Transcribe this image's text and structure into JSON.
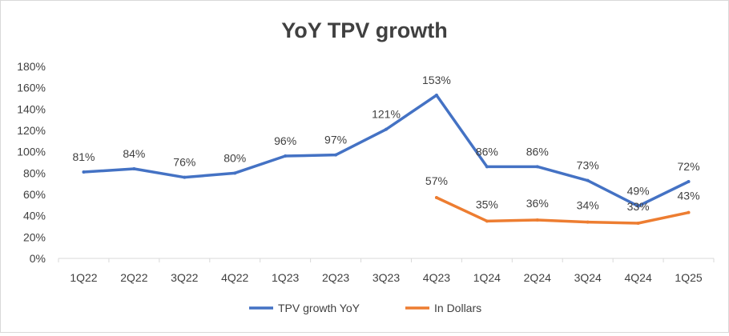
{
  "chart_data": {
    "type": "line",
    "title": "YoY TPV growth",
    "xlabel": "",
    "ylabel": "",
    "ylim": [
      0,
      180
    ],
    "yticks": [
      "0%",
      "20%",
      "40%",
      "60%",
      "80%",
      "100%",
      "120%",
      "140%",
      "160%",
      "180%"
    ],
    "grid": false,
    "legend": "bottom",
    "categories": [
      "1Q22",
      "2Q22",
      "3Q22",
      "4Q22",
      "1Q23",
      "2Q23",
      "3Q23",
      "4Q23",
      "1Q24",
      "2Q24",
      "3Q24",
      "4Q24",
      "1Q25"
    ],
    "series": [
      {
        "name": "TPV growth YoY",
        "color": "#4472C4",
        "values": [
          81,
          84,
          76,
          80,
          96,
          97,
          121,
          153,
          86,
          86,
          73,
          49,
          72
        ],
        "labels": [
          "81%",
          "84%",
          "76%",
          "80%",
          "96%",
          "97%",
          "121%",
          "153%",
          "86%",
          "86%",
          "73%",
          "49%",
          "72%"
        ]
      },
      {
        "name": "In Dollars",
        "color": "#ED7D31",
        "values": [
          null,
          null,
          null,
          null,
          null,
          null,
          null,
          57,
          35,
          36,
          34,
          33,
          43
        ],
        "labels": [
          null,
          null,
          null,
          null,
          null,
          null,
          null,
          "57%",
          "35%",
          "36%",
          "34%",
          "33%",
          "43%"
        ]
      }
    ]
  }
}
